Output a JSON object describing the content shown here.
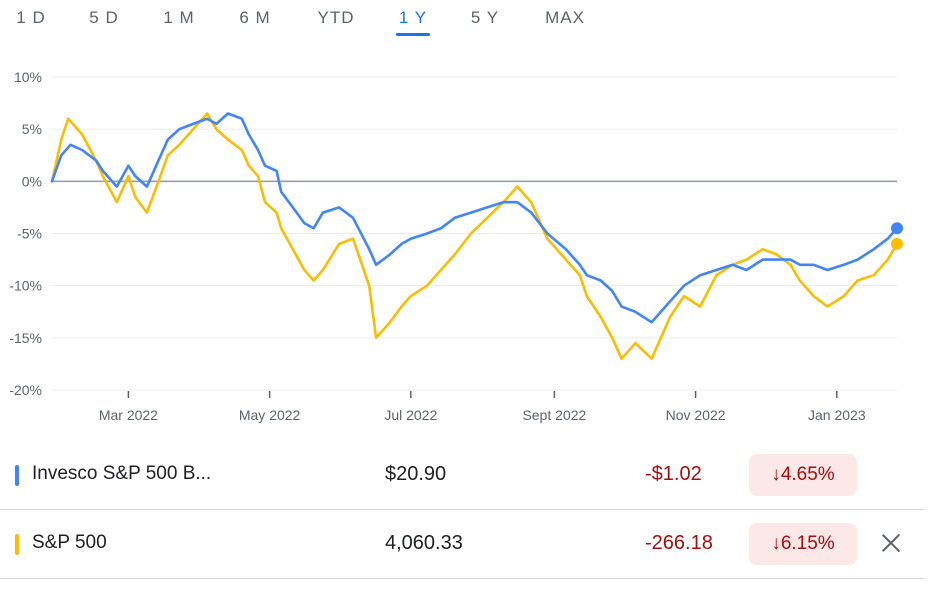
{
  "tabs": [
    {
      "label": "1 D",
      "active": false
    },
    {
      "label": "5 D",
      "active": false
    },
    {
      "label": "1 M",
      "active": false
    },
    {
      "label": "6 M",
      "active": false
    },
    {
      "label": "YTD",
      "active": false
    },
    {
      "label": "1 Y",
      "active": true
    },
    {
      "label": "5 Y",
      "active": false
    },
    {
      "label": "MAX",
      "active": false
    }
  ],
  "chart_data": {
    "type": "line",
    "y_unit": "%",
    "ylim": [
      -20,
      10
    ],
    "y_ticks": [
      "10%",
      "5%",
      "0%",
      "-5%",
      "-10%",
      "-15%",
      "-20%"
    ],
    "x_ticks": [
      "Mar 2022",
      "May 2022",
      "Jul 2022",
      "Sept 2022",
      "Nov 2022",
      "Jan 2023"
    ],
    "grid": true,
    "baseline": 0,
    "series": [
      {
        "name": "Invesco S&P 500 B...",
        "color": "#4285f4",
        "x": [
          "2022-01-27",
          "2022-01-31",
          "2022-02-04",
          "2022-02-09",
          "2022-02-15",
          "2022-02-18",
          "2022-02-24",
          "2022-03-01",
          "2022-03-04",
          "2022-03-09",
          "2022-03-14",
          "2022-03-18",
          "2022-03-23",
          "2022-03-29",
          "2022-04-04",
          "2022-04-08",
          "2022-04-13",
          "2022-04-19",
          "2022-04-22",
          "2022-04-26",
          "2022-04-29",
          "2022-05-04",
          "2022-05-06",
          "2022-05-11",
          "2022-05-16",
          "2022-05-20",
          "2022-05-24",
          "2022-05-31",
          "2022-06-06",
          "2022-06-13",
          "2022-06-16",
          "2022-06-22",
          "2022-06-27",
          "2022-07-01",
          "2022-07-08",
          "2022-07-14",
          "2022-07-20",
          "2022-07-27",
          "2022-08-03",
          "2022-08-10",
          "2022-08-16",
          "2022-08-22",
          "2022-08-29",
          "2022-09-06",
          "2022-09-12",
          "2022-09-15",
          "2022-09-21",
          "2022-09-26",
          "2022-09-30",
          "2022-10-06",
          "2022-10-13",
          "2022-10-17",
          "2022-10-21",
          "2022-10-27",
          "2022-11-03",
          "2022-11-10",
          "2022-11-17",
          "2022-11-23",
          "2022-11-30",
          "2022-12-06",
          "2022-12-12",
          "2022-12-16",
          "2022-12-22",
          "2022-12-28",
          "2023-01-04",
          "2023-01-10",
          "2023-01-17",
          "2023-01-23",
          "2023-01-27"
        ],
        "values": [
          0.0,
          2.5,
          3.5,
          3.0,
          2.0,
          1.0,
          -0.5,
          1.5,
          0.5,
          -0.5,
          2.0,
          4.0,
          5.0,
          5.5,
          6.0,
          5.5,
          6.5,
          6.0,
          4.5,
          3.0,
          1.5,
          1.0,
          -1.0,
          -2.5,
          -4.0,
          -4.5,
          -3.0,
          -2.5,
          -3.5,
          -6.5,
          -8.0,
          -7.0,
          -6.0,
          -5.5,
          -5.0,
          -4.5,
          -3.5,
          -3.0,
          -2.5,
          -2.0,
          -2.0,
          -3.0,
          -5.0,
          -6.5,
          -8.0,
          -9.0,
          -9.5,
          -10.5,
          -12.0,
          -12.5,
          -13.5,
          -12.5,
          -11.5,
          -10.0,
          -9.0,
          -8.5,
          -8.0,
          -8.5,
          -7.5,
          -7.5,
          -7.5,
          -8.0,
          -8.0,
          -8.5,
          -8.0,
          -7.5,
          -6.5,
          -5.5,
          -4.5
        ]
      },
      {
        "name": "S&P 500",
        "color": "#fbbc04",
        "x": [
          "2022-01-27",
          "2022-01-31",
          "2022-02-03",
          "2022-02-09",
          "2022-02-15",
          "2022-02-18",
          "2022-02-24",
          "2022-03-01",
          "2022-03-04",
          "2022-03-09",
          "2022-03-14",
          "2022-03-18",
          "2022-03-23",
          "2022-03-29",
          "2022-04-04",
          "2022-04-08",
          "2022-04-13",
          "2022-04-19",
          "2022-04-22",
          "2022-04-26",
          "2022-04-29",
          "2022-05-04",
          "2022-05-06",
          "2022-05-11",
          "2022-05-16",
          "2022-05-20",
          "2022-05-24",
          "2022-05-31",
          "2022-06-06",
          "2022-06-13",
          "2022-06-16",
          "2022-06-22",
          "2022-06-27",
          "2022-07-01",
          "2022-07-08",
          "2022-07-14",
          "2022-07-20",
          "2022-07-27",
          "2022-08-03",
          "2022-08-10",
          "2022-08-16",
          "2022-08-22",
          "2022-08-29",
          "2022-09-06",
          "2022-09-12",
          "2022-09-15",
          "2022-09-21",
          "2022-09-26",
          "2022-09-30",
          "2022-10-06",
          "2022-10-13",
          "2022-10-17",
          "2022-10-21",
          "2022-10-27",
          "2022-11-03",
          "2022-11-10",
          "2022-11-17",
          "2022-11-23",
          "2022-11-30",
          "2022-12-06",
          "2022-12-12",
          "2022-12-16",
          "2022-12-22",
          "2022-12-28",
          "2023-01-04",
          "2023-01-10",
          "2023-01-17",
          "2023-01-23",
          "2023-01-27"
        ],
        "values": [
          0.0,
          4.0,
          6.0,
          4.5,
          2.0,
          0.5,
          -2.0,
          0.5,
          -1.5,
          -3.0,
          0.0,
          2.5,
          3.5,
          5.0,
          6.5,
          5.0,
          4.0,
          3.0,
          1.5,
          0.5,
          -2.0,
          -3.0,
          -4.5,
          -6.5,
          -8.5,
          -9.5,
          -8.5,
          -6.0,
          -5.5,
          -10.0,
          -15.0,
          -13.5,
          -12.0,
          -11.0,
          -10.0,
          -8.5,
          -7.0,
          -5.0,
          -3.5,
          -2.0,
          -0.5,
          -2.0,
          -5.5,
          -7.5,
          -9.0,
          -11.0,
          -13.0,
          -15.0,
          -17.0,
          -15.5,
          -17.0,
          -15.0,
          -13.0,
          -11.0,
          -12.0,
          -9.0,
          -8.0,
          -7.5,
          -6.5,
          -7.0,
          -8.0,
          -9.5,
          -11.0,
          -12.0,
          -11.0,
          -9.5,
          -9.0,
          -7.5,
          -6.0
        ]
      }
    ]
  },
  "legend": {
    "rows": [
      {
        "name": "Invesco S&P 500 B...",
        "color": "#4285f4",
        "price": "$20.90",
        "change": "-$1.02",
        "arrow": "↓",
        "pct": "4.65%",
        "removable": false
      },
      {
        "name": "S&P 500",
        "color": "#fbbc04",
        "price": "4,060.33",
        "change": "-266.18",
        "arrow": "↓",
        "pct": "6.15%",
        "removable": true
      }
    ]
  }
}
